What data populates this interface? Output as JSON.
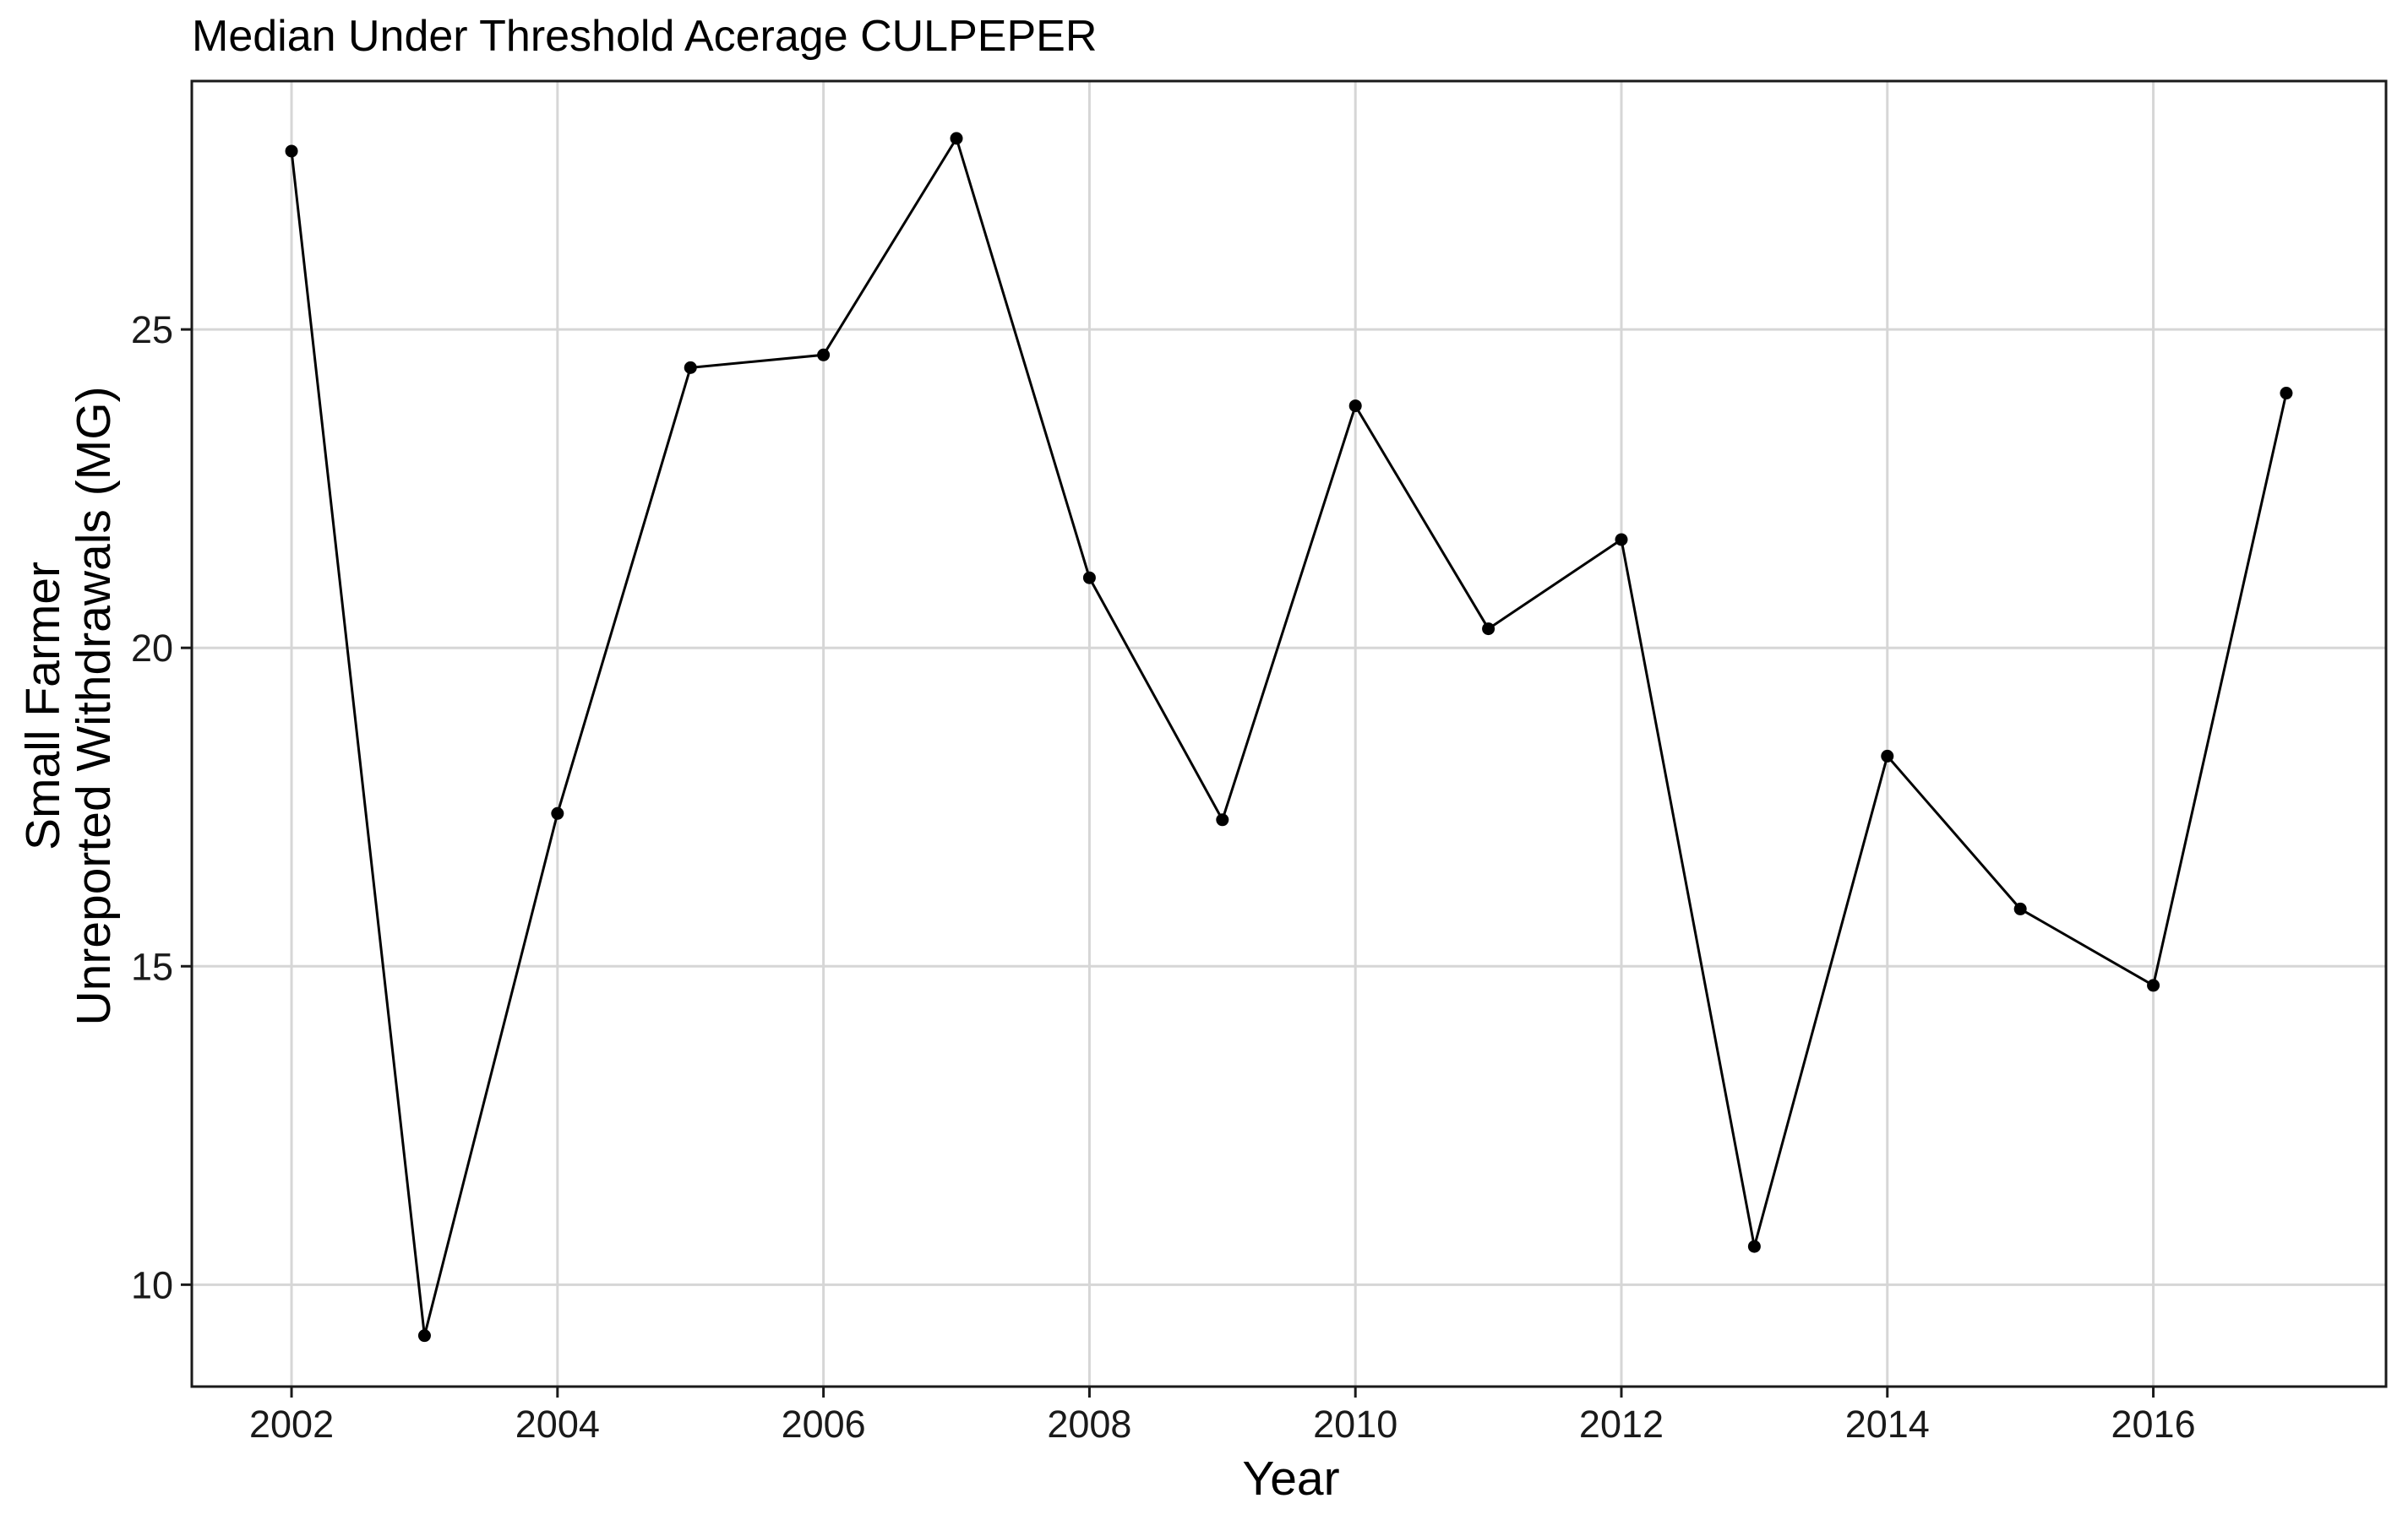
{
  "chart_data": {
    "type": "line",
    "title": "Median Under Threshold Acerage CULPEPER",
    "xlabel": "Year",
    "ylabel": [
      "Small Farmer",
      "Unreported Withdrawals (MG)"
    ],
    "x": [
      2002,
      2003,
      2004,
      2005,
      2006,
      2007,
      2008,
      2009,
      2010,
      2011,
      2012,
      2013,
      2014,
      2015,
      2016,
      2017
    ],
    "series": [
      {
        "values": [
          27.8,
          9.2,
          17.4,
          24.4,
          24.6,
          28.0,
          21.1,
          17.3,
          23.8,
          20.3,
          21.7,
          10.6,
          18.3,
          15.9,
          14.7,
          24.0
        ]
      }
    ],
    "x_ticks": [
      "2002",
      "2004",
      "2006",
      "2008",
      "2010",
      "2012",
      "2014",
      "2016"
    ],
    "y_ticks": [
      "10",
      "15",
      "20",
      "25"
    ],
    "xlim": [
      2001.25,
      2017.75
    ],
    "ylim": [
      8.4,
      28.9
    ],
    "grid": true,
    "legend": "none",
    "colors": {
      "series": "#000000",
      "grid": "#d6d6d6",
      "border": "#1a1a1a"
    }
  }
}
